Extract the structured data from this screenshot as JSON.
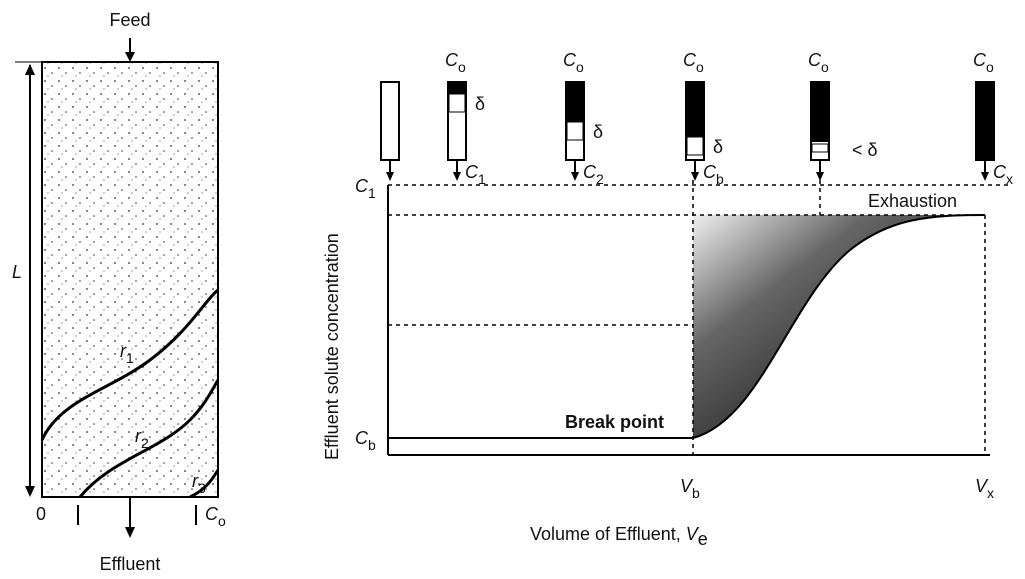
{
  "column": {
    "feed": "Feed",
    "effluent": "Effluent",
    "length": "L",
    "origin": "0",
    "outlet": {
      "main": "C",
      "sub": "o"
    },
    "zones": [
      {
        "main": "r",
        "sub": "1"
      },
      {
        "main": "r",
        "sub": "2"
      },
      {
        "main": "r",
        "sub": "3"
      }
    ]
  },
  "mini_columns": [
    {},
    {
      "top": {
        "main": "C",
        "sub": "o"
      },
      "bottom": {
        "main": "C",
        "sub": "1"
      },
      "zone": "δ"
    },
    {
      "top": {
        "main": "C",
        "sub": "o"
      },
      "bottom": {
        "main": "C",
        "sub": "2"
      },
      "zone": "δ"
    },
    {
      "top": {
        "main": "C",
        "sub": "o"
      },
      "bottom": {
        "main": "C",
        "sub": "b"
      },
      "zone": "δ"
    },
    {
      "top": {
        "main": "C",
        "sub": "o"
      },
      "zone": "< δ"
    },
    {
      "top": {
        "main": "C",
        "sub": "o"
      },
      "bottom": {
        "main": "C",
        "sub": "x"
      }
    }
  ],
  "plot": {
    "y_label": "Effluent solute concentration",
    "x_label": {
      "main": "Volume of Effluent, ",
      "var": "V",
      "sub": "e"
    },
    "y_marks": [
      {
        "main": "C",
        "sub": "1"
      },
      {
        "main": "C",
        "sub": "b"
      }
    ],
    "x_marks": [
      {
        "main": "V",
        "sub": "b"
      },
      {
        "main": "V",
        "sub": "x"
      }
    ],
    "break_point": "Break point",
    "exhaustion": "Exhaustion"
  }
}
